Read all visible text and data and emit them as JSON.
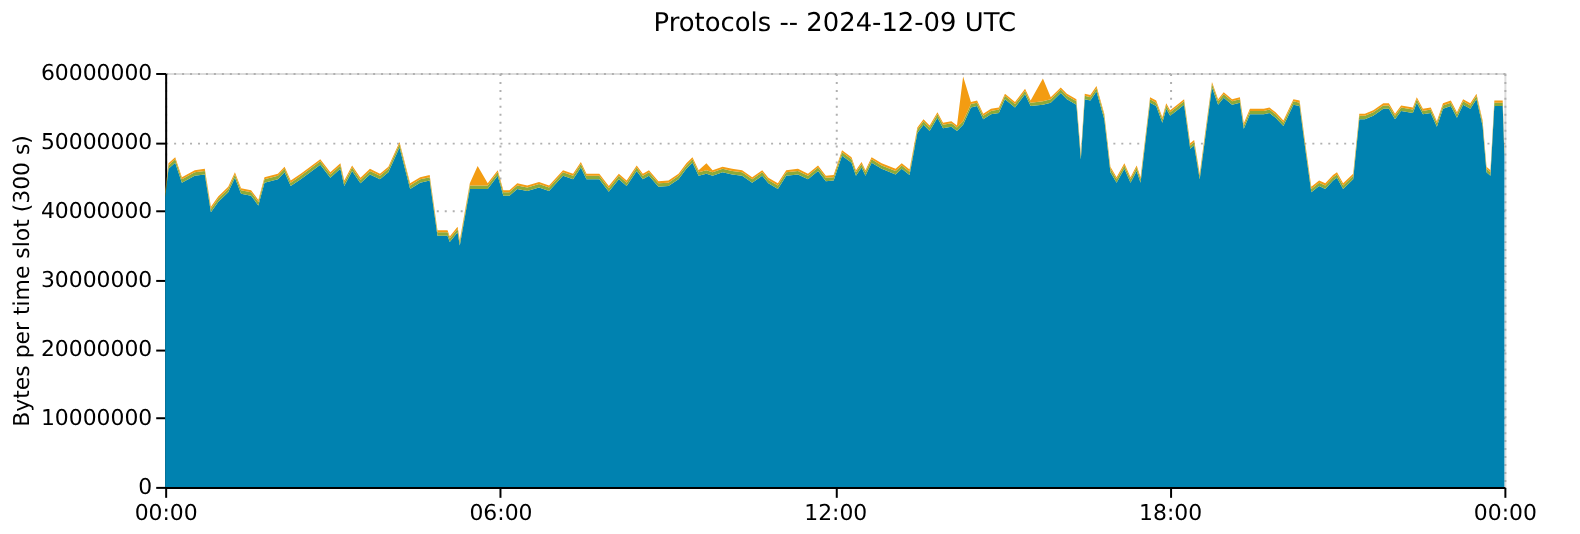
{
  "chart_data": {
    "type": "area",
    "title": "Protocols -- 2024-12-09 UTC",
    "ylabel": "Bytes per time slot (300 s)",
    "stacked": true,
    "grid": true,
    "legend": false,
    "x": [
      0,
      0.06,
      0.18,
      0.3,
      0.53,
      0.71,
      0.82,
      0.95,
      1.13,
      1.25,
      1.36,
      1.54,
      1.67,
      1.78,
      2.02,
      2.14,
      2.25,
      2.43,
      2.6,
      2.78,
      2.96,
      3.14,
      3.21,
      3.35,
      3.5,
      3.67,
      3.85,
      4.0,
      4.2,
      4.39,
      4.57,
      4.74,
      4.88,
      5.06,
      5.1,
      5.24,
      5.28,
      5.46,
      5.6,
      5.78,
      5.96,
      6.06,
      6.17,
      6.31,
      6.49,
      6.7,
      6.88,
      7.13,
      7.31,
      7.45,
      7.55,
      7.78,
      7.95,
      8.13,
      8.27,
      8.45,
      8.56,
      8.67,
      8.84,
      9.02,
      9.2,
      9.34,
      9.45,
      9.56,
      9.7,
      9.81,
      9.99,
      10.16,
      10.34,
      10.52,
      10.7,
      10.81,
      10.98,
      11.13,
      11.34,
      11.52,
      11.7,
      11.84,
      11.98,
      12.13,
      12.3,
      12.38,
      12.48,
      12.55,
      12.66,
      12.84,
      13.09,
      13.2,
      13.34,
      13.48,
      13.59,
      13.7,
      13.84,
      13.94,
      14.09,
      14.19,
      14.3,
      14.44,
      14.55,
      14.66,
      14.8,
      14.94,
      15.05,
      15.23,
      15.41,
      15.51,
      15.73,
      15.87,
      16.05,
      16.16,
      16.33,
      16.41,
      16.48,
      16.58,
      16.69,
      16.83,
      16.94,
      17.05,
      17.19,
      17.3,
      17.41,
      17.48,
      17.65,
      17.76,
      17.87,
      17.94,
      18.01,
      18.12,
      18.26,
      18.37,
      18.44,
      18.54,
      18.65,
      18.76,
      18.87,
      18.97,
      19.12,
      19.26,
      19.33,
      19.44,
      19.69,
      19.79,
      19.9,
      20.04,
      20.22,
      20.33,
      20.44,
      20.54,
      20.68,
      20.79,
      20.93,
      21.0,
      21.11,
      21.29,
      21.4,
      21.5,
      21.65,
      21.83,
      21.93,
      22.04,
      22.15,
      22.36,
      22.43,
      22.54,
      22.68,
      22.79,
      22.9,
      23.04,
      23.15,
      23.26,
      23.39,
      23.5,
      23.61,
      23.68,
      23.75,
      23.82,
      23.97,
      24
    ],
    "xlim": [
      0,
      24
    ],
    "xticks": [
      {
        "value": 0,
        "label": "00:00"
      },
      {
        "value": 6,
        "label": "06:00"
      },
      {
        "value": 12,
        "label": "12:00"
      },
      {
        "value": 18,
        "label": "18:00"
      },
      {
        "value": 24,
        "label": "00:00"
      }
    ],
    "ylim": [
      0,
      60000000
    ],
    "yticks": [
      0,
      10000000,
      20000000,
      30000000,
      40000000,
      50000000,
      60000000
    ],
    "series": [
      {
        "color": "#0082b0",
        "values": [
          42000000.0,
          46100000.0,
          47000000.0,
          44100000.0,
          45100000.0,
          45300000.0,
          39800000.0,
          41300000.0,
          42700000.0,
          44800000.0,
          42500000.0,
          42200000.0,
          40800000.0,
          44100000.0,
          44600000.0,
          45600000.0,
          43600000.0,
          44600000.0,
          45600000.0,
          46700000.0,
          44800000.0,
          46100000.0,
          43600000.0,
          45800000.0,
          44000000.0,
          45300000.0,
          44600000.0,
          45600000.0,
          49200000.0,
          43200000.0,
          44100000.0,
          44400000.0,
          36400000.0,
          36400000.0,
          35500000.0,
          36900000.0,
          35000000.0,
          43200000.0,
          43200000.0,
          43200000.0,
          45100000.0,
          42200000.0,
          42200000.0,
          43200000.0,
          42900000.0,
          43400000.0,
          42900000.0,
          45100000.0,
          44600000.0,
          46300000.0,
          44600000.0,
          44600000.0,
          42800000.0,
          44600000.0,
          43600000.0,
          45800000.0,
          44600000.0,
          45100000.0,
          43500000.0,
          43600000.0,
          44600000.0,
          46100000.0,
          47000000.0,
          45100000.0,
          45400000.0,
          45100000.0,
          45600000.0,
          45300000.0,
          45100000.0,
          44100000.0,
          45100000.0,
          44000000.0,
          43200000.0,
          45100000.0,
          45300000.0,
          44600000.0,
          45800000.0,
          44300000.0,
          44400000.0,
          48000000.0,
          47000000.0,
          45100000.0,
          46300000.0,
          45100000.0,
          47000000.0,
          46100000.0,
          45300000.0,
          46100000.0,
          45200000.0,
          51300000.0,
          52500000.0,
          51600000.0,
          53500000.0,
          52000000.0,
          52200000.0,
          51600000.0,
          52500000.0,
          55000000.0,
          55200000.0,
          53300000.0,
          54000000.0,
          54200000.0,
          56200000.0,
          55000000.0,
          56900000.0,
          55200000.0,
          55400000.0,
          55700000.0,
          57100000.0,
          56200000.0,
          55400000.0,
          47500000.0,
          56200000.0,
          56000000.0,
          57300000.0,
          53300000.0,
          45600000.0,
          44100000.0,
          46100000.0,
          44100000.0,
          45800000.0,
          44100000.0,
          55700000.0,
          55200000.0,
          52800000.0,
          54800000.0,
          53800000.0,
          54500000.0,
          55400000.0,
          49000000.0,
          49500000.0,
          44600000.0,
          51300000.0,
          57900000.0,
          55400000.0,
          56400000.0,
          55400000.0,
          55700000.0,
          51900000.0,
          54000000.0,
          54000000.0,
          54200000.0,
          53500000.0,
          52300000.0,
          55400000.0,
          55200000.0,
          48500000.0,
          42700000.0,
          43600000.0,
          43200000.0,
          44400000.0,
          44800000.0,
          43200000.0,
          44600000.0,
          53300000.0,
          53300000.0,
          53800000.0,
          54800000.0,
          54800000.0,
          53300000.0,
          54500000.0,
          54200000.0,
          55700000.0,
          54000000.0,
          54200000.0,
          52200000.0,
          54800000.0,
          55200000.0,
          53500000.0,
          55400000.0,
          54800000.0,
          56200000.0,
          52300000.0,
          45600000.0,
          45100000.0,
          55200000.0,
          55200000.0,
          48000000.0
        ]
      },
      {
        "color": "#8caa3a",
        "values": [
          500000.0,
          500000.0,
          500000.0,
          500000.0,
          500000.0,
          500000.0,
          500000.0,
          500000.0,
          500000.0,
          500000.0,
          500000.0,
          500000.0,
          500000.0,
          500000.0,
          500000.0,
          500000.0,
          500000.0,
          500000.0,
          500000.0,
          500000.0,
          500000.0,
          500000.0,
          500000.0,
          500000.0,
          500000.0,
          500000.0,
          500000.0,
          500000.0,
          500000.0,
          500000.0,
          500000.0,
          500000.0,
          500000.0,
          500000.0,
          500000.0,
          500000.0,
          500000.0,
          500000.0,
          500000.0,
          500000.0,
          500000.0,
          500000.0,
          500000.0,
          500000.0,
          500000.0,
          500000.0,
          500000.0,
          500000.0,
          500000.0,
          500000.0,
          500000.0,
          500000.0,
          500000.0,
          500000.0,
          500000.0,
          500000.0,
          500000.0,
          500000.0,
          500000.0,
          500000.0,
          500000.0,
          500000.0,
          500000.0,
          500000.0,
          500000.0,
          500000.0,
          500000.0,
          500000.0,
          500000.0,
          500000.0,
          500000.0,
          500000.0,
          500000.0,
          500000.0,
          500000.0,
          500000.0,
          500000.0,
          500000.0,
          500000.0,
          500000.0,
          500000.0,
          500000.0,
          500000.0,
          500000.0,
          500000.0,
          500000.0,
          500000.0,
          500000.0,
          500000.0,
          500000.0,
          500000.0,
          500000.0,
          500000.0,
          500000.0,
          500000.0,
          500000.0,
          500000.0,
          500000.0,
          500000.0,
          500000.0,
          500000.0,
          500000.0,
          500000.0,
          500000.0,
          500000.0,
          500000.0,
          500000.0,
          500000.0,
          500000.0,
          500000.0,
          500000.0,
          500000.0,
          500000.0,
          500000.0,
          500000.0,
          500000.0,
          500000.0,
          500000.0,
          500000.0,
          500000.0,
          500000.0,
          500000.0,
          500000.0,
          500000.0,
          500000.0,
          500000.0,
          500000.0,
          500000.0,
          500000.0,
          500000.0,
          500000.0,
          500000.0,
          500000.0,
          500000.0,
          500000.0,
          500000.0,
          500000.0,
          500000.0,
          500000.0,
          500000.0,
          500000.0,
          500000.0,
          500000.0,
          500000.0,
          500000.0,
          500000.0,
          500000.0,
          500000.0,
          500000.0,
          500000.0,
          500000.0,
          500000.0,
          500000.0,
          500000.0,
          500000.0,
          500000.0,
          500000.0,
          500000.0,
          500000.0,
          500000.0,
          500000.0,
          500000.0,
          500000.0,
          500000.0,
          500000.0,
          500000.0,
          500000.0,
          500000.0,
          500000.0,
          500000.0,
          500000.0,
          500000.0,
          500000.0,
          500000.0,
          500000.0,
          500000.0,
          500000.0,
          500000.0
        ]
      },
      {
        "color": "#f39c12",
        "values": [
          300000.0,
          300000.0,
          300000.0,
          300000.0,
          300000.0,
          300000.0,
          300000.0,
          300000.0,
          300000.0,
          300000.0,
          300000.0,
          300000.0,
          300000.0,
          300000.0,
          300000.0,
          300000.0,
          300000.0,
          300000.0,
          300000.0,
          300000.0,
          300000.0,
          300000.0,
          300000.0,
          300000.0,
          300000.0,
          300000.0,
          300000.0,
          300000.0,
          300000.0,
          300000.0,
          300000.0,
          300000.0,
          300000.0,
          300000.0,
          300000.0,
          300000.0,
          300000.0,
          300000.0,
          2800000.0,
          300000.0,
          300000.0,
          300000.0,
          300000.0,
          300000.0,
          300000.0,
          300000.0,
          300000.0,
          300000.0,
          300000.0,
          300000.0,
          300000.0,
          300000.0,
          300000.0,
          300000.0,
          300000.0,
          300000.0,
          300000.0,
          300000.0,
          300000.0,
          300000.0,
          300000.0,
          300000.0,
          300000.0,
          300000.0,
          1000000.0,
          300000.0,
          300000.0,
          300000.0,
          300000.0,
          300000.0,
          300000.0,
          300000.0,
          300000.0,
          300000.0,
          300000.0,
          300000.0,
          300000.0,
          300000.0,
          300000.0,
          300000.0,
          300000.0,
          300000.0,
          300000.0,
          300000.0,
          300000.0,
          300000.0,
          300000.0,
          300000.0,
          300000.0,
          300000.0,
          300000.0,
          300000.0,
          300000.0,
          300000.0,
          300000.0,
          300000.0,
          6500000.0,
          300000.0,
          300000.0,
          300000.0,
          300000.0,
          300000.0,
          300000.0,
          300000.0,
          300000.0,
          300000.0,
          3300000.0,
          300000.0,
          300000.0,
          300000.0,
          300000.0,
          300000.0,
          300000.0,
          300000.0,
          300000.0,
          300000.0,
          300000.0,
          300000.0,
          300000.0,
          300000.0,
          300000.0,
          300000.0,
          300000.0,
          300000.0,
          300000.0,
          300000.0,
          300000.0,
          300000.0,
          300000.0,
          300000.0,
          300000.0,
          300000.0,
          300000.0,
          300000.0,
          300000.0,
          300000.0,
          300000.0,
          300000.0,
          300000.0,
          300000.0,
          300000.0,
          300000.0,
          300000.0,
          300000.0,
          300000.0,
          300000.0,
          300000.0,
          300000.0,
          300000.0,
          300000.0,
          300000.0,
          300000.0,
          300000.0,
          300000.0,
          300000.0,
          300000.0,
          300000.0,
          300000.0,
          300000.0,
          300000.0,
          300000.0,
          300000.0,
          300000.0,
          300000.0,
          300000.0,
          300000.0,
          300000.0,
          300000.0,
          300000.0,
          300000.0,
          300000.0,
          300000.0,
          300000.0,
          300000.0,
          300000.0,
          300000.0,
          300000.0,
          300000.0
        ]
      }
    ]
  }
}
